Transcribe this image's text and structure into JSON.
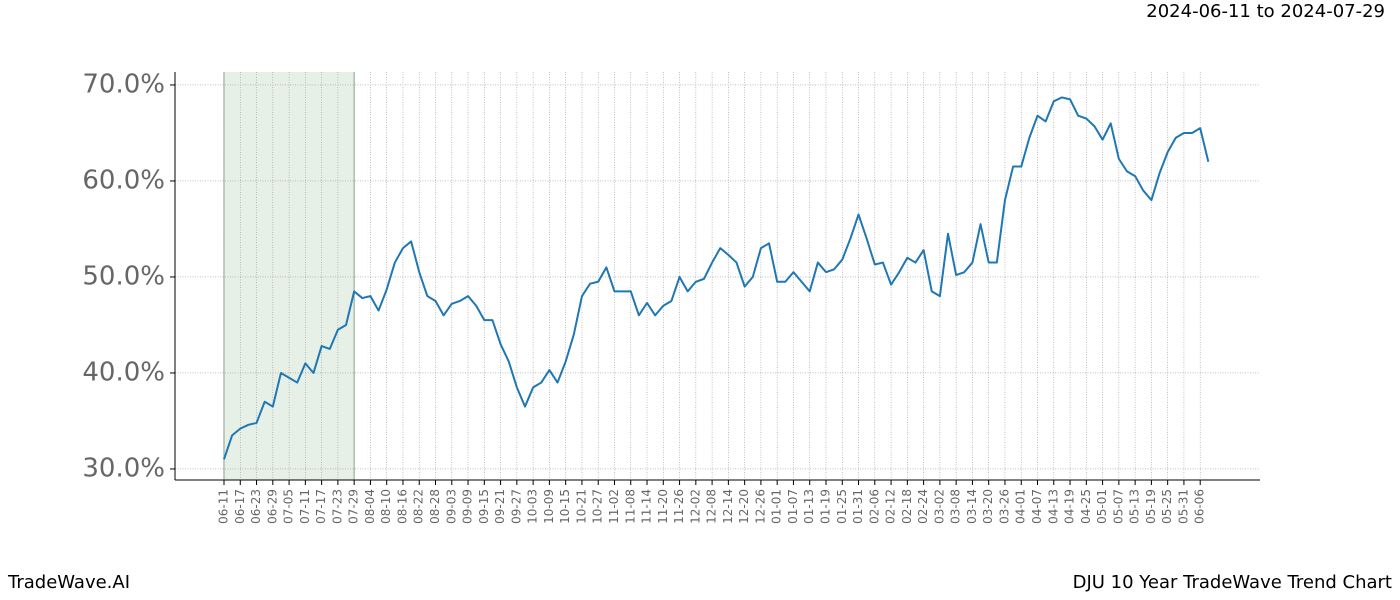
{
  "header": "2024-06-11 to 2024-07-29",
  "footer_left": "TradeWave.AI",
  "footer_right": "DJU 10 Year TradeWave Trend Chart",
  "chart_data": {
    "type": "line",
    "x": [
      "06-11",
      "06-14",
      "06-17",
      "06-20",
      "06-23",
      "06-26",
      "06-29",
      "07-02",
      "07-05",
      "07-08",
      "07-11",
      "07-14",
      "07-17",
      "07-20",
      "07-23",
      "07-26",
      "07-29",
      "08-01",
      "08-04",
      "08-07",
      "08-10",
      "08-13",
      "08-16",
      "08-19",
      "08-22",
      "08-25",
      "08-28",
      "08-31",
      "09-03",
      "09-06",
      "09-09",
      "09-12",
      "09-15",
      "09-18",
      "09-21",
      "09-24",
      "09-27",
      "09-30",
      "10-03",
      "10-06",
      "10-09",
      "10-12",
      "10-15",
      "10-18",
      "10-21",
      "10-24",
      "10-27",
      "10-30",
      "11-02",
      "11-05",
      "11-08",
      "11-11",
      "11-14",
      "11-17",
      "11-20",
      "11-23",
      "11-26",
      "11-29",
      "12-02",
      "12-05",
      "12-08",
      "12-11",
      "12-14",
      "12-17",
      "12-20",
      "12-23",
      "12-26",
      "12-29",
      "01-01",
      "01-04",
      "01-07",
      "01-10",
      "01-13",
      "01-16",
      "01-19",
      "01-22",
      "01-25",
      "01-28",
      "01-31",
      "02-03",
      "02-06",
      "02-09",
      "02-12",
      "02-15",
      "02-18",
      "02-21",
      "02-24",
      "02-27",
      "03-02",
      "03-05",
      "03-08",
      "03-11",
      "03-14",
      "03-17",
      "03-20",
      "03-23",
      "03-26",
      "03-29",
      "04-01",
      "04-04",
      "04-07",
      "04-10",
      "04-13",
      "04-16",
      "04-19",
      "04-22",
      "04-25",
      "04-28",
      "05-01",
      "05-04",
      "05-07",
      "05-10",
      "05-13",
      "05-16",
      "05-19",
      "05-22",
      "05-25",
      "05-28",
      "05-31",
      "06-03",
      "06-06",
      "06-09"
    ],
    "values": [
      31.0,
      33.5,
      34.2,
      34.6,
      34.8,
      37.0,
      36.5,
      40.0,
      39.5,
      39.0,
      41.0,
      40.0,
      42.8,
      42.5,
      44.5,
      45.0,
      48.5,
      47.8,
      48.0,
      46.5,
      48.7,
      51.5,
      53.0,
      53.7,
      50.5,
      48.0,
      47.5,
      46.0,
      47.2,
      47.5,
      48.0,
      47.0,
      45.5,
      45.5,
      43.0,
      41.2,
      38.5,
      36.5,
      38.5,
      39.0,
      40.3,
      39.0,
      41.2,
      44.0,
      48.0,
      49.3,
      49.5,
      51.0,
      48.5,
      48.5,
      48.5,
      46.0,
      47.3,
      46.0,
      47.0,
      47.5,
      50.0,
      48.5,
      49.5,
      49.8,
      51.5,
      53.0,
      52.3,
      51.5,
      49.0,
      50.0,
      53.0,
      53.5,
      49.5,
      49.5,
      50.5,
      49.5,
      48.5,
      51.5,
      50.5,
      50.8,
      51.8,
      54.0,
      56.5,
      54.0,
      51.3,
      51.5,
      49.2,
      50.5,
      52.0,
      51.5,
      52.8,
      48.5,
      48.0,
      54.5,
      50.2,
      50.5,
      51.5,
      55.5,
      51.5,
      51.5,
      58.0,
      61.5,
      61.5,
      64.5,
      66.8,
      66.2,
      68.3,
      68.7,
      68.5,
      66.8,
      66.5,
      65.7,
      64.3,
      66.0,
      62.3,
      61.0,
      60.5,
      59.0,
      58.0,
      60.8,
      63.0,
      64.5,
      65.0,
      65.0,
      65.5,
      62.0
    ],
    "color": "#1f77b4",
    "highlight": {
      "start": "06-11",
      "end": "07-29",
      "color": "#e6f0e6"
    },
    "ylim": [
      28.85,
      71.35
    ],
    "yticks": [
      {
        "value": 30,
        "label": "30.0%"
      },
      {
        "value": 40,
        "label": "40.0%"
      },
      {
        "value": 50,
        "label": "50.0%"
      },
      {
        "value": 60,
        "label": "60.0%"
      },
      {
        "value": 70,
        "label": "70.0%"
      }
    ],
    "xticks": [
      "06-11",
      "06-17",
      "06-23",
      "06-29",
      "07-05",
      "07-11",
      "07-17",
      "07-23",
      "07-29",
      "08-04",
      "08-10",
      "08-16",
      "08-22",
      "08-28",
      "09-03",
      "09-09",
      "09-15",
      "09-21",
      "09-27",
      "10-03",
      "10-09",
      "10-15",
      "10-21",
      "10-27",
      "11-02",
      "11-08",
      "11-14",
      "11-20",
      "11-26",
      "12-02",
      "12-08",
      "12-14",
      "12-20",
      "12-26",
      "01-01",
      "01-07",
      "01-13",
      "01-19",
      "01-25",
      "01-31",
      "02-06",
      "02-12",
      "02-18",
      "02-24",
      "03-02",
      "03-08",
      "03-14",
      "03-20",
      "03-26",
      "04-01",
      "04-07",
      "04-13",
      "04-19",
      "04-25",
      "05-01",
      "05-07",
      "05-13",
      "05-19",
      "05-25",
      "05-31",
      "06-06"
    ],
    "grid": true
  }
}
